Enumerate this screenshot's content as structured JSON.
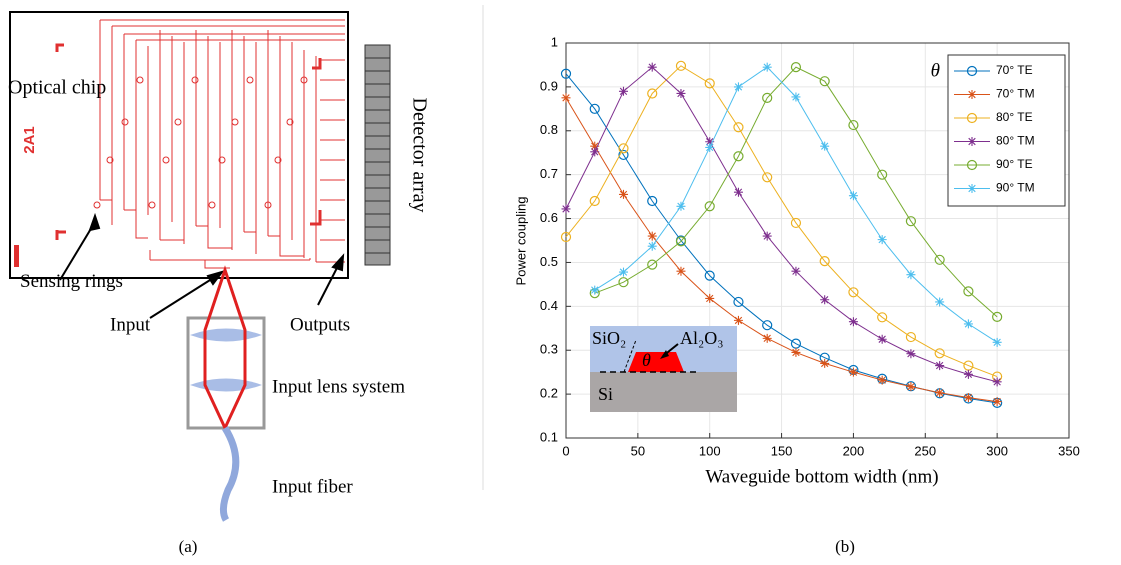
{
  "diagram": {
    "labels": {
      "optical_chip": "Optical chip",
      "chip_id": "2A1",
      "detector_array": "Detector array",
      "sensing_rings": "Sensing rings",
      "input": "Input",
      "outputs": "Outputs",
      "input_lens_system": "Input lens system",
      "input_fiber": "Input fiber"
    },
    "caption": "(a)"
  },
  "chart_data": {
    "type": "line",
    "caption": "(b)",
    "xlabel": "Waveguide bottom width (nm)",
    "ylabel": "Power coupling",
    "x": [
      0,
      20,
      40,
      60,
      80,
      100,
      120,
      140,
      160,
      180,
      200,
      220,
      240,
      260,
      280,
      300
    ],
    "xlim": [
      0,
      350
    ],
    "xticks": [
      0,
      50,
      100,
      150,
      200,
      250,
      300,
      350
    ],
    "ylim": [
      0.1,
      1
    ],
    "yticks": [
      0.1,
      0.2,
      0.3,
      0.4,
      0.5,
      0.6,
      0.7,
      0.8,
      0.9,
      1
    ],
    "grid": true,
    "legend_title": "θ",
    "legend": "upper right",
    "series": [
      {
        "name": "70° TE",
        "color": "#0072bd",
        "marker": "o",
        "values": [
          0.93,
          0.85,
          0.745,
          0.64,
          0.55,
          0.47,
          0.41,
          0.357,
          0.315,
          0.283,
          0.255,
          0.235,
          0.218,
          0.202,
          0.19,
          0.18
        ]
      },
      {
        "name": "70° TM",
        "color": "#d95319",
        "marker": "*",
        "values": [
          0.875,
          0.765,
          0.655,
          0.56,
          0.48,
          0.418,
          0.368,
          0.327,
          0.295,
          0.27,
          0.25,
          0.232,
          0.217,
          0.203,
          0.192,
          0.183
        ]
      },
      {
        "name": "80° TE",
        "color": "#edb120",
        "marker": "o",
        "values": [
          0.558,
          0.64,
          0.76,
          0.885,
          0.948,
          0.908,
          0.808,
          0.694,
          0.59,
          0.503,
          0.432,
          0.375,
          0.33,
          0.293,
          0.265,
          0.24
        ]
      },
      {
        "name": "80° TM",
        "color": "#7e2f8e",
        "marker": "*",
        "values": [
          0.622,
          0.752,
          0.89,
          0.945,
          0.885,
          0.775,
          0.66,
          0.56,
          0.48,
          0.415,
          0.365,
          0.325,
          0.292,
          0.265,
          0.245,
          0.228
        ]
      },
      {
        "name": "90° TE",
        "color": "#77ac30",
        "marker": "o",
        "values": [
          null,
          0.43,
          0.455,
          0.495,
          0.548,
          0.628,
          0.742,
          0.875,
          0.945,
          0.913,
          0.813,
          0.7,
          0.594,
          0.506,
          0.434,
          0.376
        ]
      },
      {
        "name": "90° TM",
        "color": "#4dbeee",
        "marker": "*",
        "values": [
          null,
          0.437,
          0.478,
          0.537,
          0.628,
          0.762,
          0.9,
          0.945,
          0.877,
          0.765,
          0.652,
          0.552,
          0.472,
          0.41,
          0.36,
          0.318
        ]
      }
    ],
    "inset": {
      "cladding": "SiO₂",
      "core": "Al₂O₃",
      "angle": "θ",
      "substrate": "Si"
    }
  }
}
